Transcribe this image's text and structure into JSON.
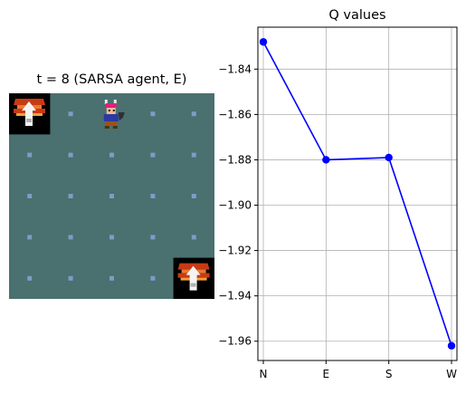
{
  "gridworld": {
    "title": "t = 8 (SARSA agent, E)",
    "cols": 5,
    "rows": 5,
    "background_color": "#4a7070",
    "dot_color": "#7a9ec8",
    "agent_cell": [
      2,
      0
    ],
    "goal_cells": [
      [
        0,
        0
      ],
      [
        4,
        4
      ]
    ],
    "goal_icon": "treasure-chest-icon",
    "agent_icon": "adventurer-icon"
  },
  "chart_data": {
    "type": "line",
    "title": "Q values",
    "categories": [
      "N",
      "E",
      "S",
      "W"
    ],
    "series": [
      {
        "values": [
          -1.828,
          -1.88,
          -1.879,
          -1.962
        ],
        "color": "#0000ff"
      }
    ],
    "yticks": [
      -1.84,
      -1.86,
      -1.88,
      -1.9,
      -1.92,
      -1.94,
      -1.96
    ],
    "ytick_labels": [
      "−1.84",
      "−1.86",
      "−1.88",
      "−1.90",
      "−1.92",
      "−1.94",
      "−1.96"
    ],
    "ylim": [
      -1.9685,
      -1.8215
    ],
    "grid": true,
    "xlabel": "",
    "ylabel": ""
  }
}
